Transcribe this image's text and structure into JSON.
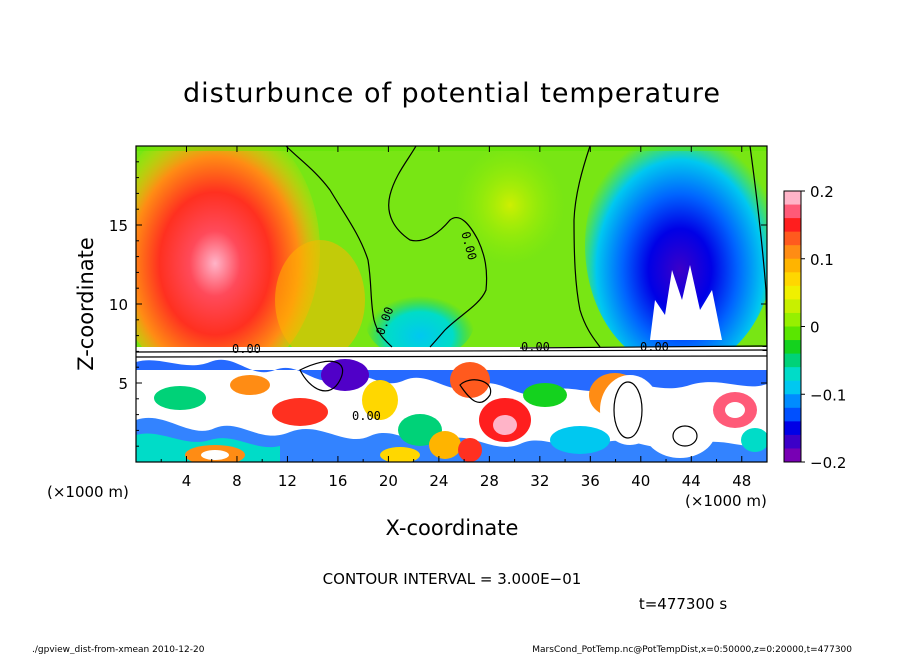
{
  "chart_data": {
    "type": "heatmap",
    "title": "disturbunce of potential temperature",
    "xlabel": "X-coordinate",
    "ylabel": "Z-coordinate",
    "x_unit_left": "(×1000 m)",
    "x_unit_right": "(×1000 m)",
    "xlim": [
      0,
      50
    ],
    "ylim": [
      0,
      20
    ],
    "x_ticks": [
      4,
      8,
      12,
      16,
      20,
      24,
      28,
      32,
      36,
      40,
      44,
      48
    ],
    "x_tick_labels": [
      "4",
      "8",
      "12",
      "16",
      "20",
      "24",
      "28",
      "32",
      "36",
      "40",
      "44",
      "48"
    ],
    "y_ticks": [
      5,
      10,
      15
    ],
    "y_tick_labels": [
      "5",
      "10",
      "15"
    ],
    "colorbar": {
      "range": [
        -0.2,
        0.2
      ],
      "ticks": [
        0.2,
        0.1,
        0,
        -0.1,
        -0.2
      ],
      "tick_labels": [
        "0.2",
        "0.1",
        "0",
        "−0.1",
        "−0.2"
      ],
      "colors": [
        "#ffb4c8",
        "#ff5a78",
        "#ff1e1e",
        "#ff5a1e",
        "#ff8c14",
        "#ffb400",
        "#ffd700",
        "#f0f000",
        "#c8f000",
        "#96f000",
        "#5ae600",
        "#14d21e",
        "#00d278",
        "#00dcc8",
        "#00c8f0",
        "#008cff",
        "#0050ff",
        "#0000e6",
        "#3c00c8",
        "#7800b4"
      ]
    },
    "contour_label": "0.00",
    "contour_interval_text": "CONTOUR INTERVAL = 3.000E−01",
    "time_text": "t=477300 s",
    "field_summary": [
      {
        "region": "upper-left",
        "x_range": [
          1,
          16
        ],
        "z_range": [
          7.3,
          19
        ],
        "sign": "positive",
        "peak": 0.2
      },
      {
        "region": "upper-center",
        "x_range": [
          17,
          33
        ],
        "z_range": [
          7.3,
          20
        ],
        "sign": "near zero",
        "peak": -0.05
      },
      {
        "region": "upper-right",
        "x_range": [
          38,
          48
        ],
        "z_range": [
          7.3,
          18
        ],
        "sign": "negative",
        "peak": -0.2
      },
      {
        "region": "lower layer",
        "x_range": [
          0,
          50
        ],
        "z_range": [
          0,
          7.3
        ],
        "sign": "mixed / turbulent",
        "peak": 0.2
      }
    ]
  },
  "footer": {
    "left": "./gpview_dist-from-xmean  2010-12-20",
    "right": "MarsCond_PotTemp.nc@PotTempDist,x=0:50000,z=0:20000,t=477300"
  }
}
